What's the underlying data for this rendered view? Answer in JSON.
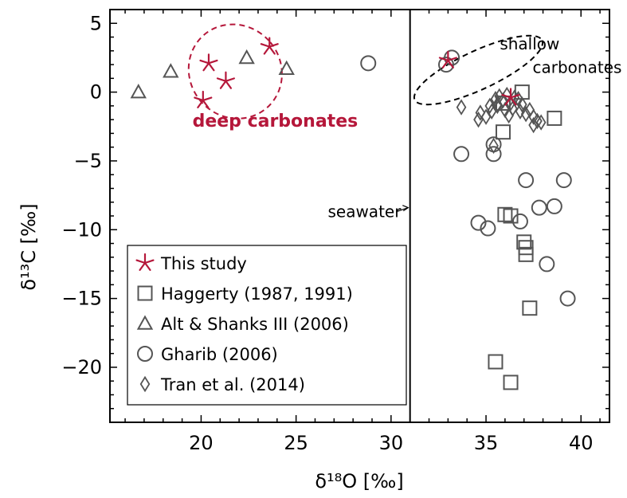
{
  "chart_data": {
    "type": "scatter",
    "xlabel": "δ¹⁸O [‰]",
    "ylabel": "δ¹³C [‰]",
    "xlim": [
      15.2,
      41.5
    ],
    "ylim": [
      -24,
      6
    ],
    "xticks": [
      20,
      25,
      30,
      35,
      40
    ],
    "yticks": [
      5,
      0,
      -5,
      -10,
      -15,
      -20
    ],
    "x_tick_labels": [
      "20",
      "25",
      "30",
      "35",
      "40"
    ],
    "y_tick_labels": [
      "5",
      "0",
      "−5",
      "−10",
      "−15",
      "−20"
    ],
    "divider_x": 31,
    "grid": false,
    "legend_position": "bottom-left",
    "colors": {
      "this_study": "#b5173a",
      "others": "#555555",
      "annotation_red": "#b5173a"
    },
    "series": [
      {
        "name": "This study",
        "marker": "star",
        "points": [
          [
            20.1,
            -0.6
          ],
          [
            20.4,
            2.1
          ],
          [
            21.3,
            0.8
          ],
          [
            23.6,
            3.3
          ],
          [
            33.0,
            2.3
          ],
          [
            36.3,
            -0.4
          ]
        ]
      },
      {
        "name": "Haggerty (1987, 1991)",
        "marker": "square",
        "points": [
          [
            36.9,
            0.0
          ],
          [
            35.9,
            -0.8
          ],
          [
            38.6,
            -1.9
          ],
          [
            35.9,
            -2.9
          ],
          [
            36.0,
            -8.9
          ],
          [
            36.3,
            -9.0
          ],
          [
            37.0,
            -10.9
          ],
          [
            37.1,
            -11.3
          ],
          [
            37.1,
            -11.8
          ],
          [
            37.3,
            -15.7
          ],
          [
            35.5,
            -19.6
          ],
          [
            36.3,
            -21.1
          ]
        ]
      },
      {
        "name": "Alt & Shanks III (2006)",
        "marker": "triangle",
        "points": [
          [
            16.7,
            0.0
          ],
          [
            18.4,
            1.5
          ],
          [
            22.4,
            2.5
          ],
          [
            24.5,
            1.7
          ]
        ]
      },
      {
        "name": "Gharib (2006)",
        "marker": "circle",
        "points": [
          [
            28.8,
            2.1
          ],
          [
            33.2,
            2.5
          ],
          [
            32.9,
            2.0
          ],
          [
            33.7,
            -4.5
          ],
          [
            35.4,
            -4.5
          ],
          [
            35.4,
            -3.8
          ],
          [
            37.1,
            -6.4
          ],
          [
            39.1,
            -6.4
          ],
          [
            34.6,
            -9.5
          ],
          [
            35.1,
            -9.9
          ],
          [
            36.8,
            -9.4
          ],
          [
            37.8,
            -8.4
          ],
          [
            38.6,
            -8.3
          ],
          [
            38.2,
            -12.5
          ],
          [
            39.3,
            -15.0
          ]
        ]
      },
      {
        "name": "Tran et al. (2014)",
        "marker": "diamond",
        "points": [
          [
            35.5,
            -0.5
          ],
          [
            35.7,
            -0.3
          ],
          [
            35.9,
            -0.6
          ],
          [
            36.1,
            -0.2
          ],
          [
            36.3,
            -0.8
          ],
          [
            36.5,
            -0.4
          ],
          [
            36.7,
            -0.5
          ],
          [
            36.9,
            -0.9
          ],
          [
            35.6,
            -1.0
          ],
          [
            36.0,
            -1.3
          ],
          [
            36.4,
            -1.2
          ],
          [
            36.8,
            -1.4
          ],
          [
            37.1,
            -1.6
          ],
          [
            37.3,
            -1.3
          ],
          [
            35.3,
            -1.4
          ],
          [
            35.0,
            -1.8
          ],
          [
            34.7,
            -1.5
          ],
          [
            34.6,
            -2.0
          ],
          [
            33.7,
            -1.1
          ],
          [
            35.2,
            -1.0
          ],
          [
            36.2,
            -1.7
          ],
          [
            37.5,
            -1.8
          ],
          [
            37.7,
            -2.1
          ],
          [
            37.9,
            -2.2
          ],
          [
            37.5,
            -2.4
          ],
          [
            35.4,
            -3.9
          ],
          [
            35.6,
            -0.9
          ]
        ]
      }
    ],
    "annotations": [
      {
        "text": "deep carbonates",
        "x": 23.9,
        "y": -2.5,
        "style": "red"
      },
      {
        "text": "shallow",
        "x": 37.3,
        "y": 3.1,
        "style": "plain"
      },
      {
        "text": "carbonates",
        "x": 39.8,
        "y": 1.4,
        "style": "plain"
      },
      {
        "text": "seawater",
        "x": 28.6,
        "y": -9.1,
        "style": "plain"
      }
    ],
    "ellipses": [
      {
        "cx": 21.8,
        "cy": 1.5,
        "rx": 2.4,
        "ry": 3.5,
        "angle": 40,
        "color": "#b5173a"
      },
      {
        "cx": 34.6,
        "cy": 1.6,
        "rx": 3.7,
        "ry": 1.4,
        "angle": 25,
        "color": "#000000"
      }
    ],
    "arrow": {
      "from": [
        30.1,
        -8.7
      ],
      "to": [
        30.9,
        -8.4
      ]
    }
  }
}
